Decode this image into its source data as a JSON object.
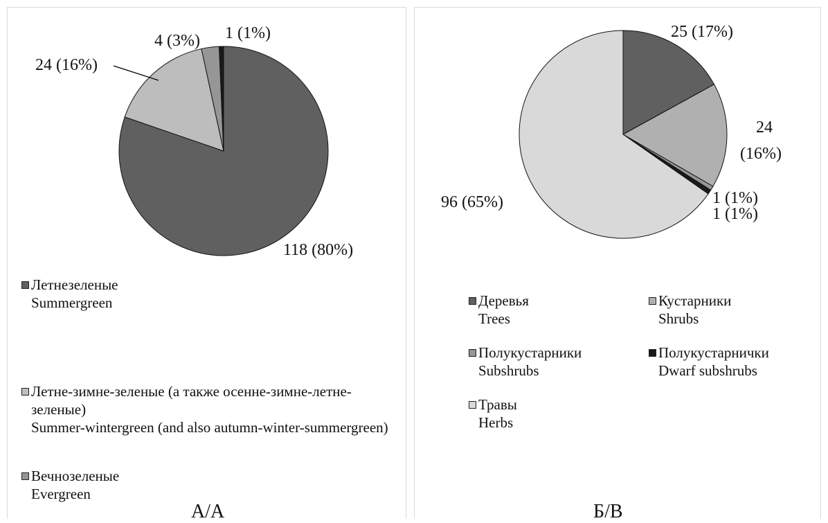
{
  "chart_data": [
    {
      "type": "pie",
      "title": "А/А",
      "series": [
        {
          "values": [
            118,
            24,
            4,
            1
          ],
          "labels": [
            "118 (80%)",
            "24 (16%)",
            "4 (3%)",
            "1 (1%)"
          ],
          "colors": [
            "#606060",
            "#bdbdbd",
            "#969696",
            "#1a1a1a"
          ]
        }
      ],
      "legend": [
        {
          "ru": "Летнезеленые",
          "en": "Summergreen",
          "color": "#606060"
        },
        {
          "ru": "Летне-зимне-зеленые (а также осенне-зимне-летне-зеленые)",
          "en": "Summer-wintergreen (and also autumn-winter-summergreen)",
          "color": "#bdbdbd"
        },
        {
          "ru": "Вечнозеленые",
          "en": "Evergreen",
          "color": "#969696"
        }
      ],
      "legend_position": "bottom"
    },
    {
      "type": "pie",
      "title": "Б/B",
      "series": [
        {
          "values": [
            25,
            24,
            1,
            1,
            96
          ],
          "labels": [
            "25 (17%)",
            "24 (16%)",
            "1 (1%)",
            "1 (1%)",
            "96 (65%)"
          ],
          "colors": [
            "#606060",
            "#b0b0b0",
            "#969696",
            "#1a1a1a",
            "#d9d9d9"
          ]
        }
      ],
      "legend": [
        {
          "ru": "Деревья",
          "en": "Trees",
          "color": "#606060"
        },
        {
          "ru": "Кустарники",
          "en": "Shrubs",
          "color": "#b0b0b0"
        },
        {
          "ru": "Полукустарники",
          "en": "Subshrubs",
          "color": "#969696"
        },
        {
          "ru": "Полукустарнички",
          "en": "Dwarf subshrubs",
          "color": "#1a1a1a"
        },
        {
          "ru": "Травы",
          "en": "Herbs",
          "color": "#d9d9d9"
        }
      ],
      "legend_position": "bottom"
    }
  ]
}
